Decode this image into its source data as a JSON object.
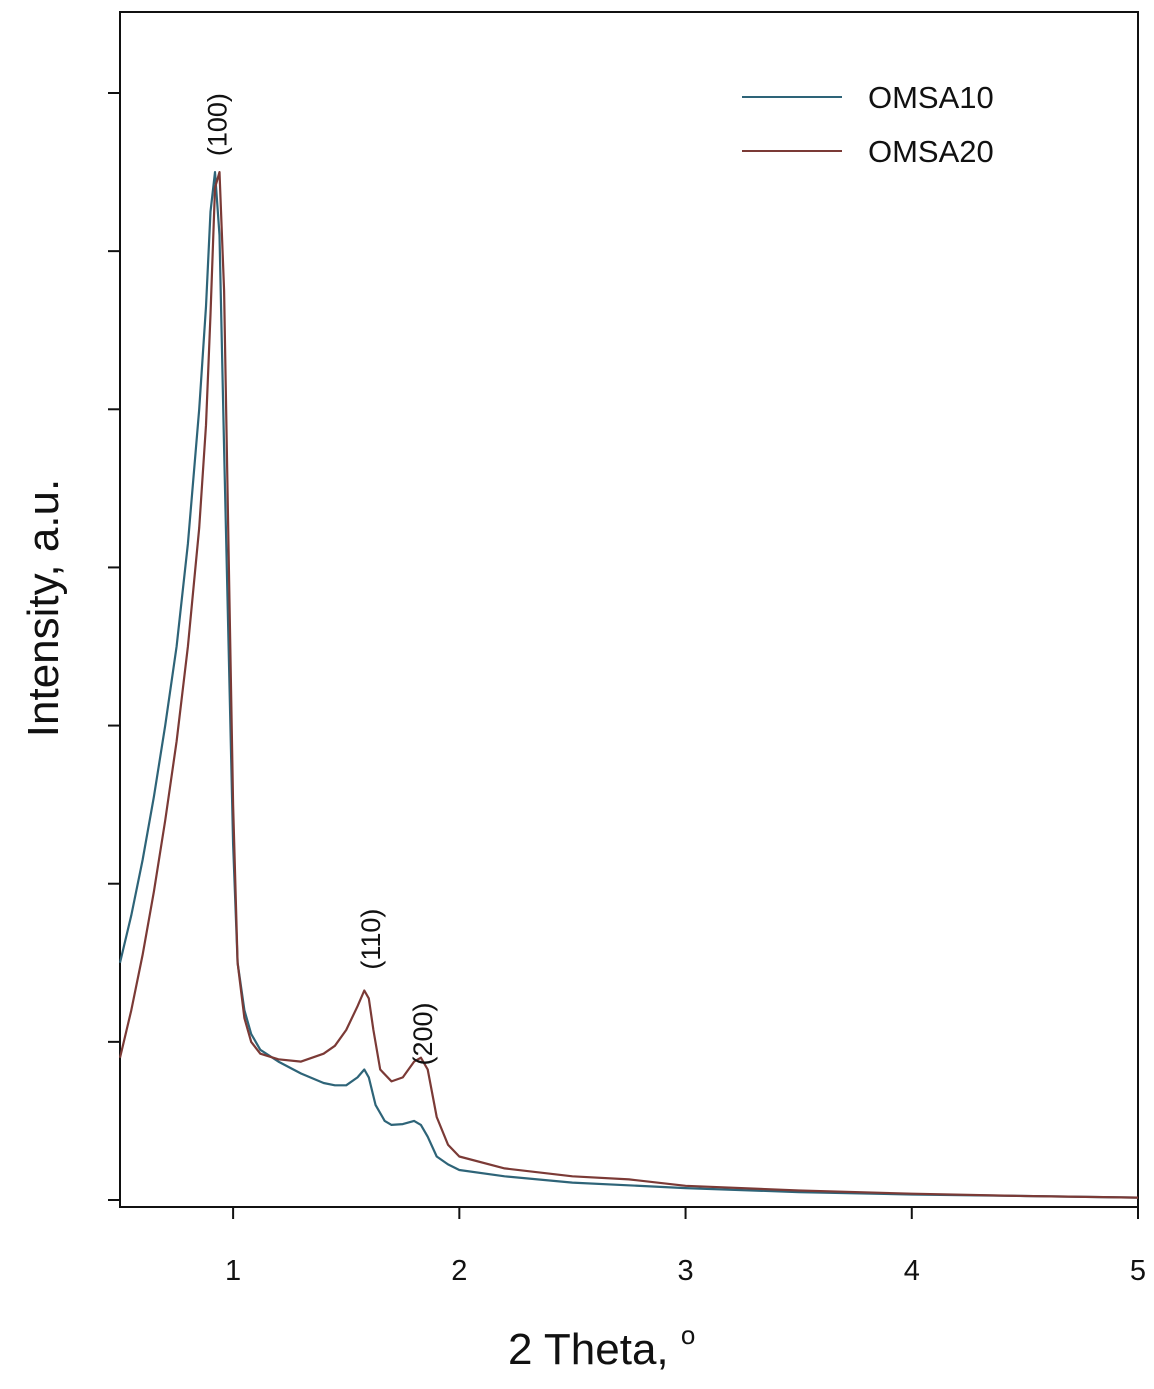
{
  "chart_data": {
    "type": "line",
    "title": "",
    "xlabel": "2 Theta, ",
    "xlabel_superscript": "o",
    "ylabel": "Intensity, a.u.",
    "xlim": [
      0.5,
      5
    ],
    "ylim": [
      0,
      1.3
    ],
    "x_ticks": [
      1,
      2,
      3,
      4,
      5
    ],
    "x_tick_labels": [
      "1",
      "2",
      "3",
      "4",
      "5"
    ],
    "y_ticks": [
      0.0,
      0.2,
      0.4,
      0.6,
      0.8,
      1.0,
      1.2,
      1.4
    ],
    "y_tick_labels_shown": false,
    "grid": false,
    "legend_position": "top-right",
    "series": [
      {
        "name": "OMSA10",
        "color": "#2e6478",
        "x": [
          0.5,
          0.55,
          0.6,
          0.65,
          0.7,
          0.75,
          0.8,
          0.85,
          0.88,
          0.9,
          0.92,
          0.94,
          0.96,
          0.98,
          1.0,
          1.02,
          1.05,
          1.08,
          1.12,
          1.2,
          1.3,
          1.4,
          1.45,
          1.5,
          1.55,
          1.58,
          1.6,
          1.63,
          1.67,
          1.7,
          1.75,
          1.8,
          1.83,
          1.86,
          1.9,
          1.95,
          2.0,
          2.2,
          2.5,
          3.0,
          3.5,
          4.0,
          4.5,
          5.0
        ],
        "y": [
          0.3,
          0.36,
          0.43,
          0.51,
          0.6,
          0.7,
          0.83,
          1.0,
          1.13,
          1.25,
          1.3,
          1.22,
          0.95,
          0.7,
          0.45,
          0.3,
          0.24,
          0.21,
          0.19,
          0.175,
          0.16,
          0.148,
          0.145,
          0.145,
          0.155,
          0.165,
          0.155,
          0.12,
          0.1,
          0.095,
          0.096,
          0.1,
          0.095,
          0.08,
          0.055,
          0.045,
          0.038,
          0.03,
          0.022,
          0.015,
          0.01,
          0.007,
          0.005,
          0.003
        ]
      },
      {
        "name": "OMSA20",
        "color": "#7b3a36",
        "x": [
          0.5,
          0.55,
          0.6,
          0.65,
          0.7,
          0.75,
          0.8,
          0.85,
          0.88,
          0.9,
          0.92,
          0.94,
          0.96,
          0.98,
          1.0,
          1.02,
          1.05,
          1.08,
          1.12,
          1.2,
          1.3,
          1.4,
          1.45,
          1.5,
          1.55,
          1.58,
          1.6,
          1.62,
          1.65,
          1.7,
          1.75,
          1.8,
          1.83,
          1.86,
          1.9,
          1.95,
          2.0,
          2.2,
          2.5,
          2.75,
          3.0,
          3.5,
          4.0,
          4.5,
          5.0
        ],
        "y": [
          0.18,
          0.24,
          0.31,
          0.39,
          0.48,
          0.58,
          0.7,
          0.85,
          0.98,
          1.12,
          1.28,
          1.3,
          1.15,
          0.82,
          0.5,
          0.3,
          0.23,
          0.2,
          0.185,
          0.178,
          0.175,
          0.185,
          0.195,
          0.215,
          0.245,
          0.265,
          0.255,
          0.215,
          0.165,
          0.15,
          0.155,
          0.175,
          0.18,
          0.165,
          0.105,
          0.07,
          0.055,
          0.04,
          0.03,
          0.026,
          0.018,
          0.012,
          0.008,
          0.005,
          0.003
        ]
      }
    ],
    "annotations": [
      {
        "text": "(100)",
        "x": 0.93,
        "y": 1.36
      },
      {
        "text": "(110)",
        "x": 1.61,
        "y": 0.33
      },
      {
        "text": "(200)",
        "x": 1.84,
        "y": 0.21
      }
    ]
  }
}
